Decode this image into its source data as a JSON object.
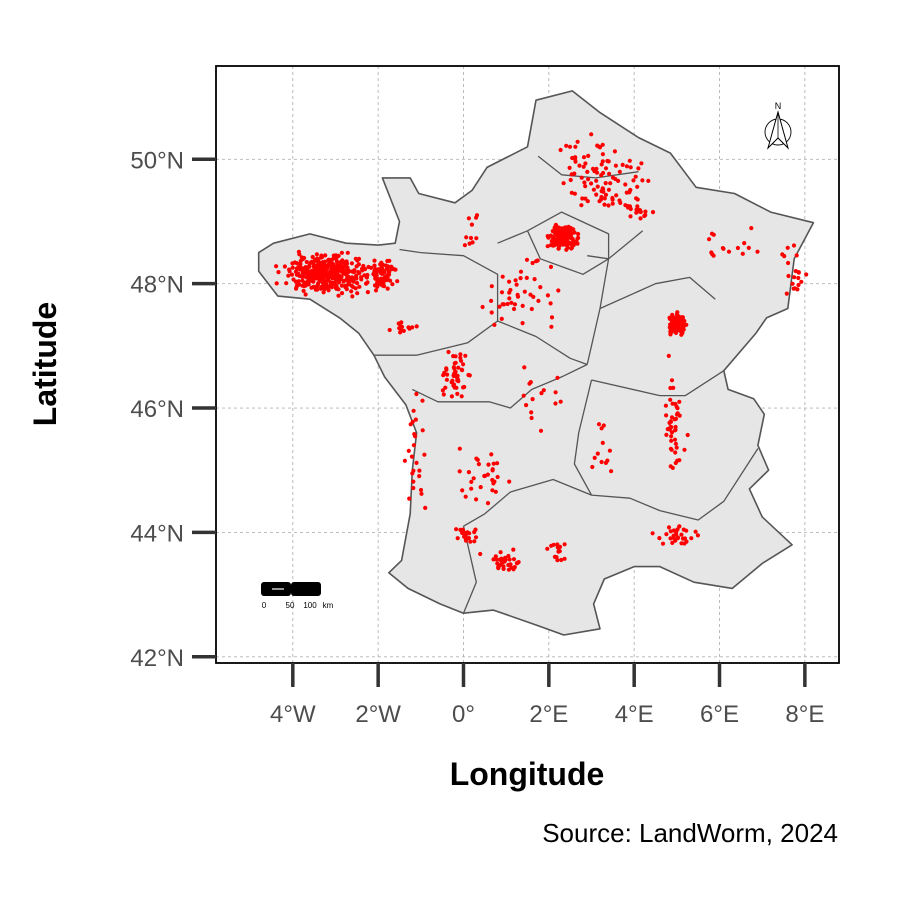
{
  "chart_data": {
    "type": "scatter",
    "title": "",
    "xlabel": "Longitude",
    "ylabel": "Latitude",
    "xlim": [
      -5.8,
      8.8
    ],
    "ylim": [
      41.9,
      51.5
    ],
    "x_ticks": [
      {
        "value": -4,
        "label": "4°W"
      },
      {
        "value": -2,
        "label": "2°W"
      },
      {
        "value": 0,
        "label": "0°"
      },
      {
        "value": 2,
        "label": "2°E"
      },
      {
        "value": 4,
        "label": "4°E"
      },
      {
        "value": 6,
        "label": "6°E"
      },
      {
        "value": 8,
        "label": "8°E"
      }
    ],
    "y_ticks": [
      {
        "value": 42,
        "label": "42°N"
      },
      {
        "value": 44,
        "label": "44°N"
      },
      {
        "value": 46,
        "label": "46°N"
      },
      {
        "value": 48,
        "label": "48°N"
      },
      {
        "value": 50,
        "label": "50°N"
      }
    ],
    "grid": true,
    "caption": "Source: LandWorm, 2024",
    "point_color": "#ff0000",
    "land_color": "#e6e6e6",
    "border_color": "#555555",
    "north_arrow_label": "N",
    "scale_bar": {
      "labels": [
        "0",
        "50",
        "100",
        "km"
      ]
    },
    "france_outline": [
      [
        1.7,
        50.95
      ],
      [
        2.55,
        51.1
      ],
      [
        3.2,
        50.75
      ],
      [
        4.1,
        50.35
      ],
      [
        4.85,
        50.1
      ],
      [
        5.45,
        49.55
      ],
      [
        6.35,
        49.45
      ],
      [
        7.2,
        49.15
      ],
      [
        8.2,
        48.98
      ],
      [
        7.75,
        48.4
      ],
      [
        7.6,
        47.6
      ],
      [
        7.1,
        47.45
      ],
      [
        6.85,
        47.2
      ],
      [
        6.1,
        46.6
      ],
      [
        6.2,
        46.3
      ],
      [
        6.8,
        46.15
      ],
      [
        7.05,
        45.9
      ],
      [
        6.9,
        45.4
      ],
      [
        7.15,
        45.0
      ],
      [
        6.7,
        44.7
      ],
      [
        7.0,
        44.25
      ],
      [
        7.7,
        43.8
      ],
      [
        7.0,
        43.5
      ],
      [
        6.3,
        43.1
      ],
      [
        5.4,
        43.2
      ],
      [
        4.6,
        43.45
      ],
      [
        4.0,
        43.45
      ],
      [
        3.3,
        43.25
      ],
      [
        3.05,
        42.85
      ],
      [
        3.2,
        42.45
      ],
      [
        2.35,
        42.35
      ],
      [
        1.75,
        42.5
      ],
      [
        0.7,
        42.75
      ],
      [
        0.0,
        42.7
      ],
      [
        -0.55,
        42.85
      ],
      [
        -1.3,
        43.1
      ],
      [
        -1.75,
        43.35
      ],
      [
        -1.45,
        43.55
      ],
      [
        -1.25,
        44.3
      ],
      [
        -1.2,
        45.0
      ],
      [
        -1.1,
        45.6
      ],
      [
        -1.35,
        46.05
      ],
      [
        -1.85,
        46.5
      ],
      [
        -2.1,
        46.85
      ],
      [
        -2.45,
        47.2
      ],
      [
        -2.9,
        47.45
      ],
      [
        -3.6,
        47.75
      ],
      [
        -4.35,
        47.8
      ],
      [
        -4.8,
        48.2
      ],
      [
        -4.8,
        48.5
      ],
      [
        -4.45,
        48.65
      ],
      [
        -3.6,
        48.8
      ],
      [
        -2.75,
        48.65
      ],
      [
        -2.0,
        48.62
      ],
      [
        -1.6,
        48.65
      ],
      [
        -1.5,
        49.0
      ],
      [
        -1.9,
        49.7
      ],
      [
        -1.25,
        49.7
      ],
      [
        -1.05,
        49.45
      ],
      [
        -0.2,
        49.3
      ],
      [
        0.2,
        49.5
      ],
      [
        0.55,
        49.87
      ],
      [
        1.5,
        50.2
      ],
      [
        1.7,
        50.95
      ]
    ],
    "region_borders": [
      [
        [
          1.75,
          50.05
        ],
        [
          2.3,
          49.75
        ],
        [
          3.1,
          49.7
        ],
        [
          4.1,
          49.8
        ]
      ],
      [
        [
          4.2,
          48.85
        ],
        [
          3.4,
          48.4
        ],
        [
          2.9,
          48.45
        ]
      ],
      [
        [
          1.5,
          48.85
        ],
        [
          2.3,
          49.15
        ],
        [
          3.4,
          48.8
        ],
        [
          3.4,
          48.4
        ],
        [
          2.8,
          48.15
        ],
        [
          2.4,
          48.25
        ],
        [
          1.8,
          48.4
        ],
        [
          1.5,
          48.85
        ]
      ],
      [
        [
          0.8,
          48.65
        ],
        [
          1.5,
          48.85
        ]
      ],
      [
        [
          -1.0,
          48.5
        ],
        [
          0.0,
          48.45
        ],
        [
          0.8,
          48.15
        ],
        [
          0.8,
          47.4
        ],
        [
          0.1,
          47.05
        ],
        [
          -1.1,
          46.85
        ],
        [
          -2.1,
          46.85
        ]
      ],
      [
        [
          -1.5,
          48.55
        ],
        [
          -1.0,
          48.5
        ]
      ],
      [
        [
          -1.2,
          46.3
        ],
        [
          -0.6,
          46.1
        ],
        [
          0.6,
          46.1
        ],
        [
          1.1,
          46.0
        ],
        [
          1.6,
          46.3
        ],
        [
          2.3,
          46.5
        ],
        [
          2.9,
          46.7
        ]
      ],
      [
        [
          0.8,
          47.4
        ],
        [
          1.7,
          47.15
        ],
        [
          2.5,
          46.8
        ],
        [
          2.9,
          46.7
        ]
      ],
      [
        [
          3.4,
          48.4
        ],
        [
          3.2,
          47.6
        ],
        [
          3.0,
          47.0
        ],
        [
          2.9,
          46.7
        ]
      ],
      [
        [
          3.2,
          47.6
        ],
        [
          4.5,
          48.0
        ],
        [
          5.3,
          48.1
        ],
        [
          5.9,
          47.75
        ]
      ],
      [
        [
          3.0,
          46.45
        ],
        [
          4.6,
          46.2
        ],
        [
          5.2,
          46.2
        ],
        [
          6.1,
          46.6
        ]
      ],
      [
        [
          1.1,
          44.65
        ],
        [
          2.1,
          44.85
        ],
        [
          3.0,
          44.6
        ],
        [
          3.9,
          44.55
        ],
        [
          4.6,
          44.35
        ],
        [
          5.5,
          44.2
        ],
        [
          6.1,
          44.5
        ],
        [
          6.9,
          45.35
        ]
      ],
      [
        [
          0.0,
          44.1
        ],
        [
          0.3,
          43.2
        ],
        [
          0.0,
          42.7
        ]
      ],
      [
        [
          1.1,
          44.65
        ],
        [
          0.5,
          44.3
        ],
        [
          0.0,
          44.1
        ]
      ],
      [
        [
          3.0,
          44.6
        ],
        [
          2.6,
          45.1
        ],
        [
          2.7,
          45.6
        ],
        [
          3.0,
          46.45
        ]
      ]
    ],
    "point_clusters": [
      {
        "center": [
          -3.2,
          48.15
        ],
        "spread": [
          0.9,
          0.28
        ],
        "count": 380
      },
      {
        "center": [
          -1.9,
          48.15
        ],
        "spread": [
          0.3,
          0.22
        ],
        "count": 70
      },
      {
        "center": [
          2.35,
          48.75
        ],
        "spread": [
          0.3,
          0.22
        ],
        "count": 140
      },
      {
        "center": [
          5.0,
          47.35
        ],
        "spread": [
          0.17,
          0.13
        ],
        "count": 190
      },
      {
        "center": [
          -0.15,
          46.55
        ],
        "spread": [
          0.3,
          0.35
        ],
        "count": 50
      },
      {
        "center": [
          3.5,
          49.65
        ],
        "spread": [
          0.8,
          0.45
        ],
        "count": 70
      },
      {
        "center": [
          0.95,
          43.5
        ],
        "spread": [
          0.45,
          0.18
        ],
        "count": 35
      },
      {
        "center": [
          0.05,
          43.95
        ],
        "spread": [
          0.25,
          0.15
        ],
        "count": 20
      },
      {
        "center": [
          5.0,
          43.95
        ],
        "spread": [
          0.45,
          0.15
        ],
        "count": 30
      },
      {
        "center": [
          4.9,
          45.7
        ],
        "spread": [
          0.25,
          0.8
        ],
        "count": 45
      },
      {
        "center": [
          -1.1,
          45.3
        ],
        "spread": [
          0.2,
          1.0
        ],
        "count": 25
      },
      {
        "center": [
          1.3,
          47.9
        ],
        "spread": [
          1.0,
          0.55
        ],
        "count": 45
      },
      {
        "center": [
          7.7,
          48.2
        ],
        "spread": [
          0.3,
          0.55
        ],
        "count": 20
      },
      {
        "center": [
          2.2,
          43.7
        ],
        "spread": [
          0.3,
          0.22
        ],
        "count": 15
      },
      {
        "center": [
          0.5,
          44.9
        ],
        "spread": [
          0.6,
          0.45
        ],
        "count": 30
      },
      {
        "center": [
          1.7,
          46.2
        ],
        "spread": [
          0.7,
          0.45
        ],
        "count": 15
      },
      {
        "center": [
          4.1,
          49.15
        ],
        "spread": [
          0.25,
          0.12
        ],
        "count": 15
      },
      {
        "center": [
          6.2,
          48.7
        ],
        "spread": [
          0.9,
          0.5
        ],
        "count": 15
      },
      {
        "center": [
          2.8,
          49.9
        ],
        "spread": [
          0.7,
          0.6
        ],
        "count": 30
      },
      {
        "center": [
          3.3,
          45.35
        ],
        "spread": [
          0.35,
          0.45
        ],
        "count": 12
      },
      {
        "center": [
          -1.4,
          47.3
        ],
        "spread": [
          0.3,
          0.1
        ],
        "count": 15
      },
      {
        "center": [
          0.2,
          48.9
        ],
        "spread": [
          0.2,
          0.3
        ],
        "count": 10
      }
    ]
  }
}
